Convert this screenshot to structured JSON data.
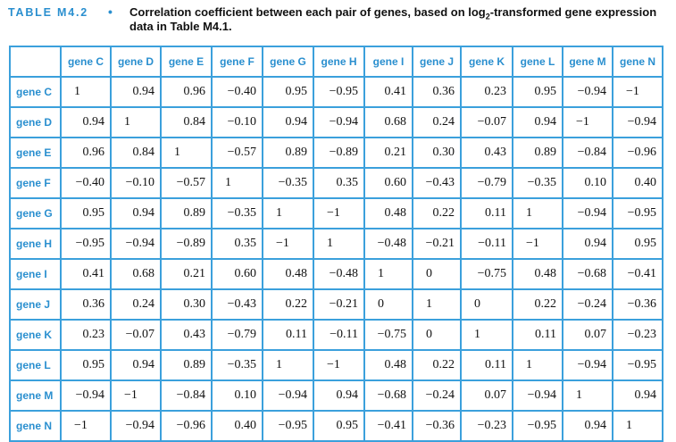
{
  "caption": {
    "label": "TABLE M4.2",
    "bullet": "•",
    "text_before_sub": "Correlation coefficient between each pair of genes, based on log",
    "sub": "2",
    "text_after_sub": "-transformed gene expression data in Table M4.1."
  },
  "table": {
    "columns": [
      "gene C",
      "gene D",
      "gene E",
      "gene F",
      "gene G",
      "gene H",
      "gene I",
      "gene J",
      "gene K",
      "gene L",
      "gene M",
      "gene N"
    ],
    "rows": [
      {
        "label": "gene C",
        "values": [
          "1",
          "0.94",
          "0.96",
          "−0.40",
          "0.95",
          "−0.95",
          "0.41",
          "0.36",
          "0.23",
          "0.95",
          "−0.94",
          "−1"
        ]
      },
      {
        "label": "gene D",
        "values": [
          "0.94",
          "1",
          "0.84",
          "−0.10",
          "0.94",
          "−0.94",
          "0.68",
          "0.24",
          "−0.07",
          "0.94",
          "−1",
          "−0.94"
        ]
      },
      {
        "label": "gene E",
        "values": [
          "0.96",
          "0.84",
          "1",
          "−0.57",
          "0.89",
          "−0.89",
          "0.21",
          "0.30",
          "0.43",
          "0.89",
          "−0.84",
          "−0.96"
        ]
      },
      {
        "label": "gene F",
        "values": [
          "−0.40",
          "−0.10",
          "−0.57",
          "1",
          "−0.35",
          "0.35",
          "0.60",
          "−0.43",
          "−0.79",
          "−0.35",
          "0.10",
          "0.40"
        ]
      },
      {
        "label": "gene G",
        "values": [
          "0.95",
          "0.94",
          "0.89",
          "−0.35",
          "1",
          "−1",
          "0.48",
          "0.22",
          "0.11",
          "1",
          "−0.94",
          "−0.95"
        ]
      },
      {
        "label": "gene H",
        "values": [
          "−0.95",
          "−0.94",
          "−0.89",
          "0.35",
          "−1",
          "1",
          "−0.48",
          "−0.21",
          "−0.11",
          "−1",
          "0.94",
          "0.95"
        ]
      },
      {
        "label": "gene I",
        "values": [
          "0.41",
          "0.68",
          "0.21",
          "0.60",
          "0.48",
          "−0.48",
          "1",
          "0",
          "−0.75",
          "0.48",
          "−0.68",
          "−0.41"
        ]
      },
      {
        "label": "gene J",
        "values": [
          "0.36",
          "0.24",
          "0.30",
          "−0.43",
          "0.22",
          "−0.21",
          "0",
          "1",
          "0",
          "0.22",
          "−0.24",
          "−0.36"
        ]
      },
      {
        "label": "gene K",
        "values": [
          "0.23",
          "−0.07",
          "0.43",
          "−0.79",
          "0.11",
          "−0.11",
          "−0.75",
          "0",
          "1",
          "0.11",
          "0.07",
          "−0.23"
        ]
      },
      {
        "label": "gene L",
        "values": [
          "0.95",
          "0.94",
          "0.89",
          "−0.35",
          "1",
          "−1",
          "0.48",
          "0.22",
          "0.11",
          "1",
          "−0.94",
          "−0.95"
        ]
      },
      {
        "label": "gene M",
        "values": [
          "−0.94",
          "−1",
          "−0.84",
          "0.10",
          "−0.94",
          "0.94",
          "−0.68",
          "−0.24",
          "0.07",
          "−0.94",
          "1",
          "0.94"
        ]
      },
      {
        "label": "gene N",
        "values": [
          "−1",
          "−0.94",
          "−0.96",
          "0.40",
          "−0.95",
          "0.95",
          "−0.41",
          "−0.36",
          "−0.23",
          "−0.95",
          "0.94",
          "1"
        ]
      }
    ]
  },
  "colors": {
    "accent": "#2a8fcf",
    "border": "#3ba0dc"
  }
}
